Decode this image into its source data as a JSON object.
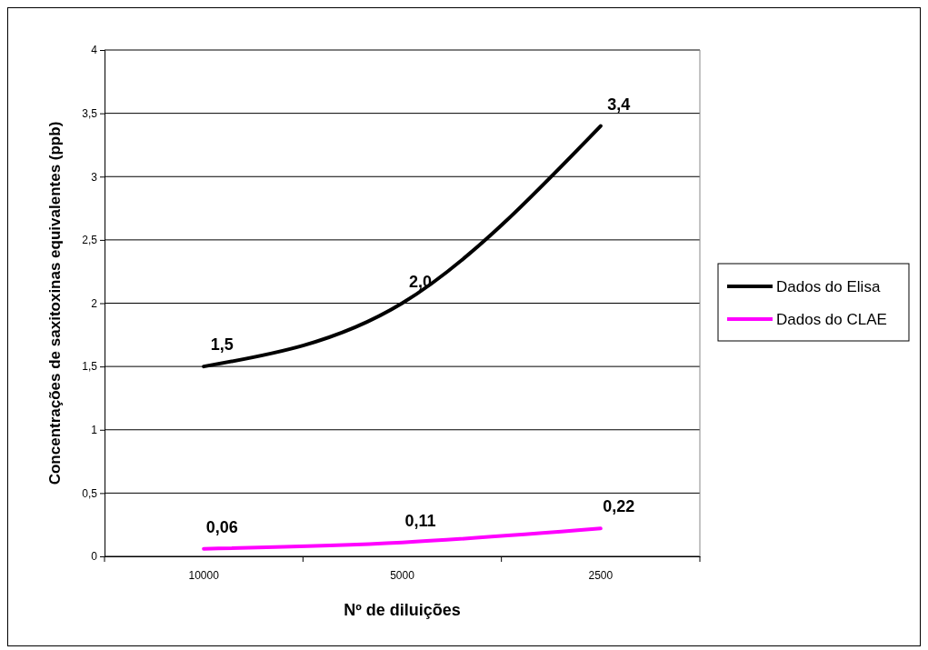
{
  "chart_data": {
    "type": "line",
    "xlabel": "Nº de diluições",
    "ylabel": "Concentrações de saxitoxinas equivalentes (ppb)",
    "categories": [
      "10000",
      "5000",
      "2500"
    ],
    "series": [
      {
        "name": "Dados do Elisa",
        "color": "#000000",
        "values": [
          1.5,
          2.0,
          3.4
        ],
        "value_labels": [
          "1,5",
          "2,0",
          "3,4"
        ]
      },
      {
        "name": "Dados do CLAE",
        "color": "#ff00ff",
        "values": [
          0.06,
          0.11,
          0.22
        ],
        "value_labels": [
          "0,06",
          "0,11",
          "0,22"
        ]
      }
    ],
    "ylim": [
      0,
      4
    ],
    "yticks": [
      0,
      {
        "value": 0.5,
        "label": "0,5"
      },
      1,
      {
        "value": 1.5,
        "label": "1,5"
      },
      2,
      {
        "value": 2.5,
        "label": "2,5"
      },
      3,
      {
        "value": 3.5,
        "label": "3,5"
      },
      4
    ],
    "grid": "y",
    "legend": "right",
    "marker": "none",
    "line_style": "solid"
  }
}
